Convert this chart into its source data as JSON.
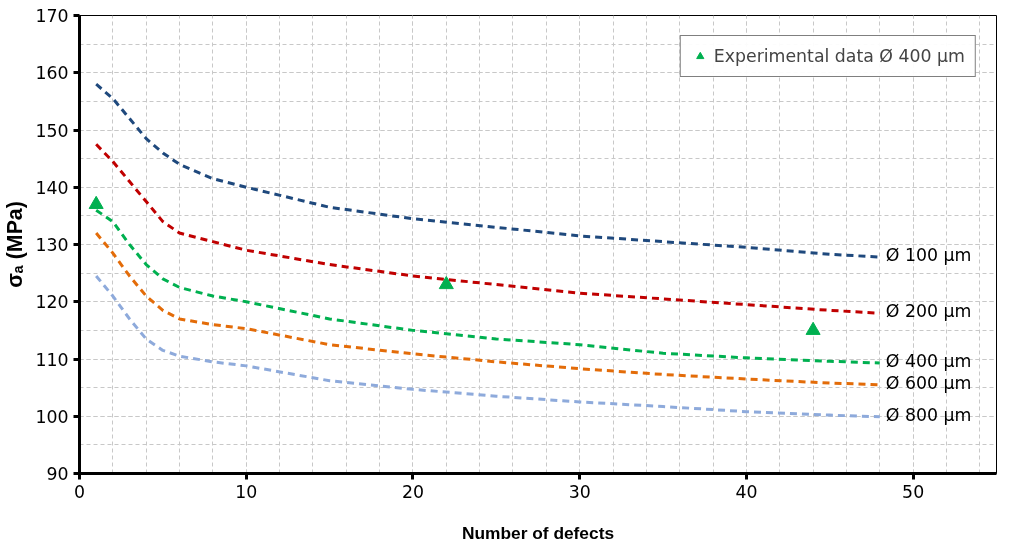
{
  "chart_data": {
    "type": "line",
    "xlabel": "Number of defects",
    "ylabel": "σₐ (MPa)",
    "xlim": [
      0,
      55
    ],
    "ylim": [
      90,
      170
    ],
    "xticks": [
      0,
      10,
      20,
      30,
      40,
      50
    ],
    "yticks": [
      90,
      100,
      110,
      120,
      130,
      140,
      150,
      160,
      170
    ],
    "grid": true,
    "legend": "top right",
    "line_style": "dashed",
    "marker": "none",
    "x": [
      1,
      2,
      3,
      4,
      5,
      6,
      8,
      10,
      15,
      20,
      25,
      30,
      35,
      40,
      45,
      48
    ],
    "series": [
      {
        "name": "Ø 100 µm",
        "color": "#1f497d",
        "values": [
          158,
          155.5,
          152,
          148.5,
          146,
          144,
          141.5,
          140,
          136.5,
          134.5,
          133,
          131.5,
          130.5,
          129.5,
          128.3,
          127.8
        ]
      },
      {
        "name": "Ø 200 µm",
        "color": "#c00000",
        "values": [
          147.5,
          144.5,
          141,
          137.5,
          134,
          132,
          130.5,
          129,
          126.5,
          124.5,
          123,
          121.5,
          120.5,
          119.5,
          118.5,
          118
        ]
      },
      {
        "name": "Ø 400 µm",
        "color": "#00b050",
        "values": [
          136,
          134,
          130,
          126.5,
          124,
          122.5,
          121,
          120,
          117,
          115,
          113.5,
          112.5,
          111,
          110.2,
          109.6,
          109.3
        ]
      },
      {
        "name": "Ø 600 µm",
        "color": "#e36c09",
        "values": [
          132,
          128.5,
          124.5,
          121,
          118.5,
          117,
          116,
          115.3,
          112.5,
          110.9,
          109.5,
          108.3,
          107.3,
          106.5,
          105.8,
          105.5
        ]
      },
      {
        "name": "Ø 800 µm",
        "color": "#8eaadb",
        "values": [
          124.5,
          121,
          117,
          113.5,
          111.5,
          110.5,
          109.5,
          108.8,
          106.2,
          104.7,
          103.5,
          102.5,
          101.7,
          100.8,
          100.2,
          99.9
        ]
      },
      {
        "name": "Experimental data Ø 400 µm",
        "type": "scatter",
        "marker": "triangle",
        "color": "#00b050",
        "x": [
          1,
          22,
          44
        ],
        "values": [
          137,
          123,
          115
        ]
      }
    ]
  }
}
